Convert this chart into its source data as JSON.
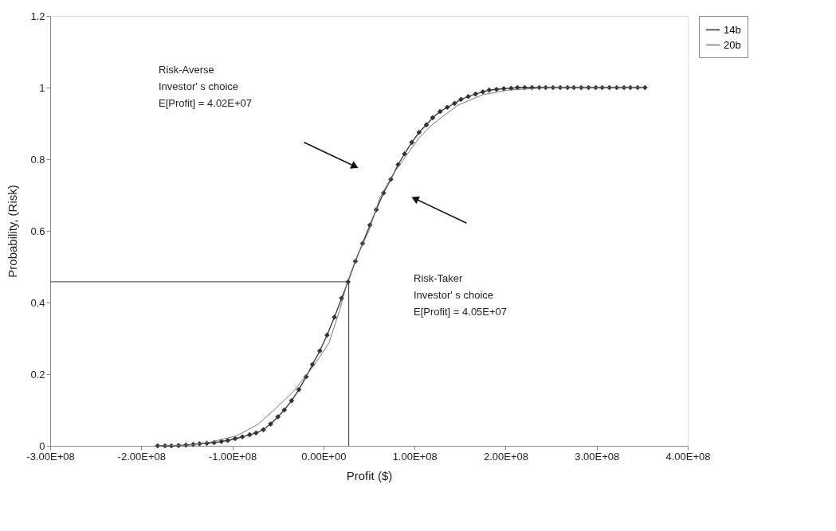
{
  "chart_data": {
    "type": "line",
    "xlabel": "Profit ($)",
    "ylabel": "Probability, (Risk)",
    "xlim": [
      -300000000.0,
      400000000.0
    ],
    "xticks": [
      {
        "value": -300000000.0,
        "label": "-3.00E+08"
      },
      {
        "value": -200000000.0,
        "label": "-2.00E+08"
      },
      {
        "value": -100000000.0,
        "label": "-1.00E+08"
      },
      {
        "value": 0,
        "label": "0.00E+00"
      },
      {
        "value": 100000000.0,
        "label": "1.00E+08"
      },
      {
        "value": 200000000.0,
        "label": "2.00E+08"
      },
      {
        "value": 300000000.0,
        "label": "3.00E+08"
      },
      {
        "value": 400000000.0,
        "label": "4.00E+08"
      }
    ],
    "ylim": [
      0,
      1.2
    ],
    "yticks": [
      0,
      0.2,
      0.4,
      0.6,
      0.8,
      1,
      1.2
    ],
    "grid": false,
    "legend": "right",
    "line_style": "solid",
    "series": [
      {
        "name": "14b",
        "color": "#333333",
        "marker": "diamond",
        "x": [
          -182000000.0,
          -174000000.0,
          -167000000.0,
          -159000000.0,
          -151000000.0,
          -143000000.0,
          -136000000.0,
          -128000000.0,
          -120000000.0,
          -112000000.0,
          -105000000.0,
          -97000000.0,
          -89000000.0,
          -81000000.0,
          -74000000.0,
          -66000000.0,
          -58000000.0,
          -50000000.0,
          -43000000.0,
          -35000000.0,
          -27000000.0,
          -19000000.0,
          -12000000.0,
          -4000000.0,
          4000000.0,
          12000000.0,
          20000000.0,
          27000000.0,
          35000000.0,
          43000000.0,
          51000000.0,
          58000000.0,
          66000000.0,
          74000000.0,
          82000000.0,
          89000000.0,
          97000000.0,
          105000000.0,
          113000000.0,
          120000000.0,
          128000000.0,
          136000000.0,
          144000000.0,
          151000000.0,
          159000000.0,
          167000000.0,
          175000000.0,
          182000000.0,
          190000000.0,
          198000000.0,
          206000000.0,
          213000000.0,
          221000000.0,
          229000000.0,
          237000000.0,
          244000000.0,
          252000000.0,
          260000000.0,
          268000000.0,
          275000000.0,
          283000000.0,
          291000000.0,
          299000000.0,
          306000000.0,
          314000000.0,
          322000000.0,
          330000000.0,
          337000000.0,
          345000000.0,
          353000000.0
        ],
        "values": [
          0,
          0,
          0,
          0.001,
          0.002,
          0.004,
          0.006,
          0.007,
          0.009,
          0.012,
          0.015,
          0.02,
          0.025,
          0.031,
          0.036,
          0.045,
          0.061,
          0.081,
          0.1,
          0.126,
          0.157,
          0.193,
          0.227,
          0.265,
          0.309,
          0.359,
          0.412,
          0.458,
          0.515,
          0.565,
          0.616,
          0.659,
          0.706,
          0.744,
          0.785,
          0.815,
          0.847,
          0.875,
          0.896,
          0.916,
          0.933,
          0.945,
          0.956,
          0.967,
          0.975,
          0.982,
          0.988,
          0.993,
          0.995,
          0.997,
          0.998,
          1,
          1,
          1,
          1,
          1,
          1,
          1,
          1,
          1,
          1,
          1,
          1,
          1,
          1,
          1,
          1,
          1,
          1,
          1
        ]
      },
      {
        "name": "20b",
        "color": "#777777",
        "marker": "none",
        "x": [
          -182000000.0,
          -148000000.0,
          -123000000.0,
          -95000000.0,
          -72000000.0,
          -53000000.0,
          -33000000.0,
          -11000000.0,
          6000000.0,
          18000000.0,
          26000000.0,
          37000000.0,
          50000000.0,
          62000000.0,
          77000000.0,
          94000000.0,
          105000000.0,
          119000000.0,
          147000000.0,
          175000000.0,
          203000000.0,
          248000000.0,
          352000000.0
        ],
        "values": [
          0,
          0.002,
          0.011,
          0.028,
          0.06,
          0.103,
          0.152,
          0.222,
          0.287,
          0.38,
          0.455,
          0.53,
          0.6,
          0.693,
          0.76,
          0.821,
          0.86,
          0.896,
          0.95,
          0.98,
          0.993,
          1,
          1
        ]
      }
    ],
    "ref_lines": [
      {
        "axis": "y",
        "value": 0.458,
        "color": "#333333"
      },
      {
        "axis": "x",
        "value": 27800000.0,
        "color": "#333333"
      }
    ],
    "annotations": [
      "Risk-Averse\nInvestor' s choice\nE[Profit] = 4.02E+07",
      "Risk-Taker\nInvestor' s choice\nE[Profit] = 4.05E+07"
    ]
  }
}
